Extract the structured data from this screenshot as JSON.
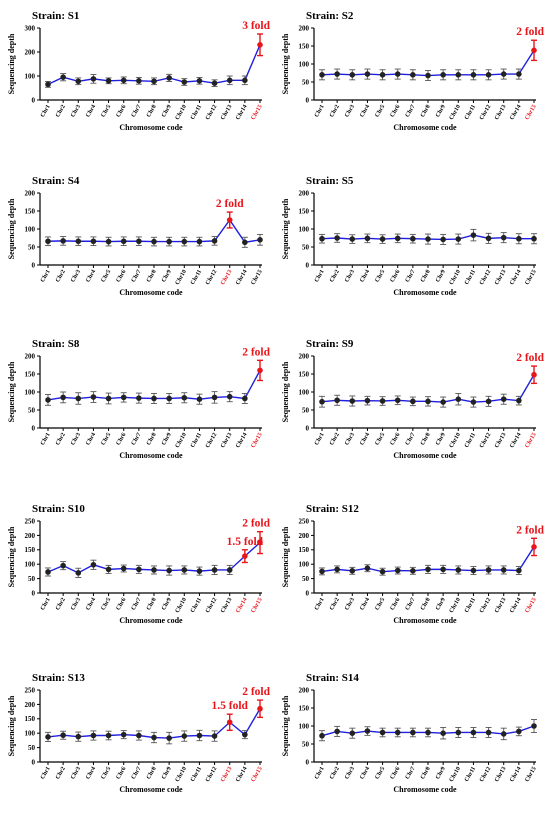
{
  "chart_data": [
    {
      "type": "line",
      "title": "Strain: S1",
      "xlabel": "Chromosome code",
      "ylabel": "Sequencing depth",
      "ylim": [
        0,
        300
      ],
      "yticks": [
        0,
        100,
        200,
        300
      ],
      "categories": [
        "Chr1",
        "Chr2",
        "Chr3",
        "Chr4",
        "Chr5",
        "Chr6",
        "Chr7",
        "Chr8",
        "Chr9",
        "Chr10",
        "Chr11",
        "Chr12",
        "Chr13",
        "Chr14",
        "Chr15"
      ],
      "highlight": [
        "Chr15"
      ],
      "series": [
        {
          "values": [
            65,
            95,
            78,
            88,
            80,
            82,
            80,
            78,
            92,
            75,
            80,
            70,
            82,
            82,
            230
          ],
          "errors": [
            12,
            15,
            14,
            18,
            12,
            14,
            14,
            14,
            15,
            14,
            14,
            14,
            18,
            18,
            45
          ]
        }
      ],
      "annotations": [
        {
          "text": "3 fold",
          "at": "Chr15"
        }
      ],
      "color": "#1f1fe0",
      "highlight_color": "#e8151b"
    },
    {
      "type": "line",
      "title": "Strain: S2",
      "xlabel": "Chromosome code",
      "ylabel": "Sequencing depth",
      "ylim": [
        0,
        200
      ],
      "yticks": [
        0,
        50,
        100,
        150,
        200
      ],
      "categories": [
        "Chr1",
        "Chr2",
        "Chr3",
        "Chr4",
        "Chr5",
        "Chr6",
        "Chr7",
        "Chr8",
        "Chr9",
        "Chr10",
        "Chr11",
        "Chr12",
        "Chr13",
        "Chr14",
        "Chr15"
      ],
      "highlight": [
        "Chr15"
      ],
      "series": [
        {
          "values": [
            70,
            72,
            70,
            72,
            70,
            72,
            70,
            68,
            70,
            70,
            70,
            70,
            72,
            72,
            138
          ],
          "errors": [
            14,
            14,
            14,
            14,
            14,
            14,
            14,
            14,
            14,
            14,
            14,
            14,
            14,
            14,
            28
          ]
        }
      ],
      "annotations": [
        {
          "text": "2 fold",
          "at": "Chr15"
        }
      ],
      "color": "#1f1fe0",
      "highlight_color": "#e8151b"
    },
    {
      "type": "line",
      "title": "Strain: S4",
      "xlabel": "Chromosome code",
      "ylabel": "Sequencing depth",
      "ylim": [
        0,
        200
      ],
      "yticks": [
        0,
        50,
        100,
        150,
        200
      ],
      "categories": [
        "Chr1",
        "Chr2",
        "Chr3",
        "Chr4",
        "Chr5",
        "Chr6",
        "Chr7",
        "Chr8",
        "Chr9",
        "Chr10",
        "Chr11",
        "Chr12",
        "Chr13",
        "Chr14",
        "Chr15"
      ],
      "highlight": [
        "Chr13"
      ],
      "series": [
        {
          "values": [
            66,
            67,
            66,
            66,
            65,
            66,
            66,
            65,
            65,
            65,
            65,
            67,
            125,
            63,
            70
          ],
          "errors": [
            12,
            12,
            12,
            12,
            12,
            12,
            12,
            12,
            12,
            12,
            12,
            12,
            22,
            14,
            15
          ]
        }
      ],
      "annotations": [
        {
          "text": "2 fold",
          "at": "Chr13"
        }
      ],
      "color": "#1f1fe0",
      "highlight_color": "#e8151b"
    },
    {
      "type": "line",
      "title": "Strain: S5",
      "xlabel": "Chromosome code",
      "ylabel": "Sequencing depth",
      "ylim": [
        0,
        200
      ],
      "yticks": [
        0,
        50,
        100,
        150,
        200
      ],
      "categories": [
        "Chr1",
        "Chr2",
        "Chr3",
        "Chr4",
        "Chr5",
        "Chr6",
        "Chr7",
        "Chr8",
        "Chr9",
        "Chr10",
        "Chr11",
        "Chr12",
        "Chr13",
        "Chr14",
        "Chr15"
      ],
      "highlight": [],
      "series": [
        {
          "values": [
            73,
            75,
            72,
            74,
            72,
            74,
            73,
            72,
            71,
            72,
            83,
            74,
            76,
            73,
            73
          ],
          "errors": [
            12,
            12,
            12,
            12,
            12,
            12,
            12,
            14,
            14,
            14,
            16,
            14,
            14,
            14,
            14
          ]
        }
      ],
      "annotations": [],
      "color": "#1f1fe0",
      "highlight_color": "#e8151b"
    },
    {
      "type": "line",
      "title": "Strain: S8",
      "xlabel": "Chromosome code",
      "ylabel": "Sequencing depth",
      "ylim": [
        0,
        200
      ],
      "yticks": [
        0,
        50,
        100,
        150,
        200
      ],
      "categories": [
        "Chr1",
        "Chr2",
        "Chr3",
        "Chr4",
        "Chr5",
        "Chr6",
        "Chr7",
        "Chr8",
        "Chr9",
        "Chr10",
        "Chr11",
        "Chr12",
        "Chr13",
        "Chr14",
        "Chr15"
      ],
      "highlight": [
        "Chr15"
      ],
      "series": [
        {
          "values": [
            78,
            85,
            82,
            86,
            82,
            85,
            83,
            82,
            82,
            84,
            80,
            85,
            87,
            82,
            160
          ],
          "errors": [
            15,
            15,
            16,
            15,
            15,
            13,
            14,
            14,
            14,
            14,
            14,
            16,
            14,
            14,
            28
          ]
        }
      ],
      "annotations": [
        {
          "text": "2 fold",
          "at": "Chr15"
        }
      ],
      "color": "#1f1fe0",
      "highlight_color": "#e8151b"
    },
    {
      "type": "line",
      "title": "Strain: S9",
      "xlabel": "Chromosome code",
      "ylabel": "Sequencing depth",
      "ylim": [
        0,
        200
      ],
      "yticks": [
        0,
        50,
        100,
        150,
        200
      ],
      "categories": [
        "Chr1",
        "Chr2",
        "Chr3",
        "Chr4",
        "Chr5",
        "Chr6",
        "Chr7",
        "Chr8",
        "Chr9",
        "Chr10",
        "Chr11",
        "Chr12",
        "Chr13",
        "Chr14",
        "Chr15"
      ],
      "highlight": [
        "Chr15"
      ],
      "series": [
        {
          "values": [
            73,
            77,
            75,
            76,
            75,
            77,
            74,
            74,
            72,
            80,
            72,
            74,
            80,
            76,
            148
          ],
          "errors": [
            15,
            14,
            14,
            12,
            12,
            12,
            12,
            13,
            14,
            16,
            14,
            14,
            14,
            12,
            24
          ]
        }
      ],
      "annotations": [
        {
          "text": "2 fold",
          "at": "Chr15"
        }
      ],
      "color": "#1f1fe0",
      "highlight_color": "#e8151b"
    },
    {
      "type": "line",
      "title": "Strain: S10",
      "xlabel": "Chromosome code",
      "ylabel": "Sequencing depth",
      "ylim": [
        0,
        250
      ],
      "yticks": [
        0,
        50,
        100,
        150,
        200,
        250
      ],
      "categories": [
        "Chr1",
        "Chr2",
        "Chr3",
        "Chr4",
        "Chr5",
        "Chr6",
        "Chr7",
        "Chr8",
        "Chr9",
        "Chr10",
        "Chr11",
        "Chr12",
        "Chr13",
        "Chr14",
        "Chr15"
      ],
      "highlight": [
        "Chr14",
        "Chr15"
      ],
      "series": [
        {
          "values": [
            73,
            95,
            70,
            98,
            82,
            85,
            82,
            80,
            78,
            80,
            76,
            80,
            80,
            128,
            175
          ],
          "errors": [
            14,
            14,
            16,
            16,
            14,
            12,
            14,
            14,
            16,
            14,
            14,
            16,
            16,
            22,
            38
          ]
        }
      ],
      "annotations": [
        {
          "text": "1.5 fold",
          "at": "Chr14"
        },
        {
          "text": "2 fold",
          "at": "Chr15"
        }
      ],
      "color": "#1f1fe0",
      "highlight_color": "#e8151b"
    },
    {
      "type": "line",
      "title": "Strain: S12",
      "xlabel": "Chromosome code",
      "ylabel": "Sequencing depth",
      "ylim": [
        0,
        250
      ],
      "yticks": [
        0,
        50,
        100,
        150,
        200,
        250
      ],
      "categories": [
        "Chr1",
        "Chr2",
        "Chr3",
        "Chr4",
        "Chr5",
        "Chr6",
        "Chr7",
        "Chr8",
        "Chr9",
        "Chr10",
        "Chr11",
        "Chr12",
        "Chr13",
        "Chr14",
        "Chr15"
      ],
      "highlight": [
        "Chr15"
      ],
      "series": [
        {
          "values": [
            75,
            82,
            77,
            86,
            74,
            78,
            77,
            82,
            82,
            80,
            78,
            80,
            80,
            78,
            160
          ],
          "errors": [
            12,
            12,
            12,
            12,
            12,
            12,
            12,
            14,
            14,
            14,
            14,
            14,
            14,
            14,
            30
          ]
        }
      ],
      "annotations": [
        {
          "text": "2 fold",
          "at": "Chr15"
        }
      ],
      "color": "#1f1fe0",
      "highlight_color": "#e8151b"
    },
    {
      "type": "line",
      "title": "Strain: S13",
      "xlabel": "Chromosome code",
      "ylabel": "Sequencing depth",
      "ylim": [
        0,
        250
      ],
      "yticks": [
        0,
        50,
        100,
        150,
        200,
        250
      ],
      "categories": [
        "Chr1",
        "Chr2",
        "Chr3",
        "Chr4",
        "Chr5",
        "Chr6",
        "Chr7",
        "Chr8",
        "Chr9",
        "Chr10",
        "Chr11",
        "Chr12",
        "Chr13",
        "Chr14",
        "Chr15"
      ],
      "highlight": [
        "Chr13",
        "Chr15"
      ],
      "series": [
        {
          "values": [
            87,
            93,
            88,
            92,
            92,
            95,
            92,
            85,
            83,
            90,
            92,
            90,
            138,
            95,
            185
          ],
          "errors": [
            16,
            14,
            16,
            16,
            15,
            14,
            16,
            18,
            20,
            18,
            18,
            18,
            28,
            14,
            30
          ]
        }
      ],
      "annotations": [
        {
          "text": "1.5 fold",
          "at": "Chr13"
        },
        {
          "text": "2 fold",
          "at": "Chr15"
        }
      ],
      "color": "#1f1fe0",
      "highlight_color": "#e8151b"
    },
    {
      "type": "line",
      "title": "Strain: S14",
      "xlabel": "Chromosome code",
      "ylabel": "Sequencing depth",
      "ylim": [
        0,
        200
      ],
      "yticks": [
        0,
        50,
        100,
        150,
        200
      ],
      "categories": [
        "Chr1",
        "Chr2",
        "Chr3",
        "Chr4",
        "Chr5",
        "Chr6",
        "Chr7",
        "Chr8",
        "Chr9",
        "Chr10",
        "Chr11",
        "Chr12",
        "Chr13",
        "Chr14",
        "Chr15"
      ],
      "highlight": [],
      "series": [
        {
          "values": [
            73,
            85,
            80,
            86,
            82,
            82,
            82,
            82,
            80,
            82,
            82,
            82,
            78,
            85,
            100
          ],
          "errors": [
            14,
            14,
            14,
            12,
            12,
            12,
            12,
            12,
            16,
            14,
            14,
            14,
            16,
            12,
            18
          ]
        }
      ],
      "annotations": [],
      "color": "#1f1fe0",
      "highlight_color": "#e8151b"
    }
  ]
}
